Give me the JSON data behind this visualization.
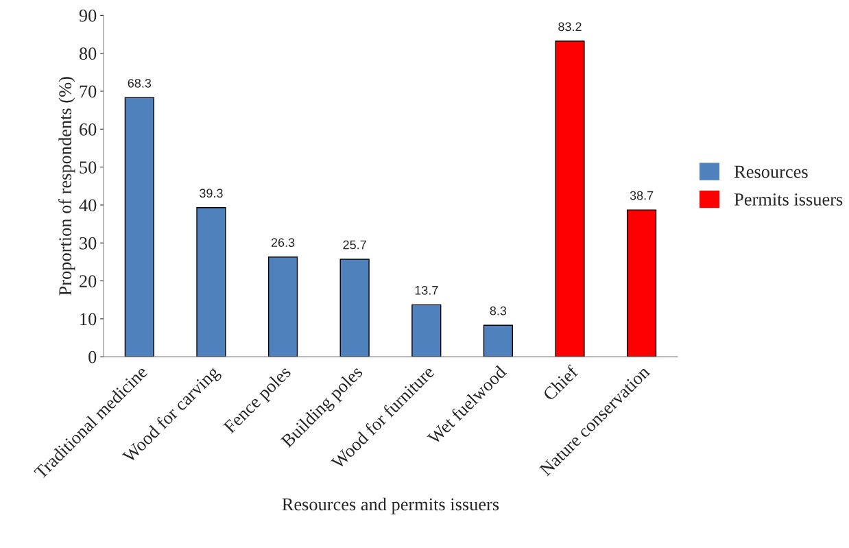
{
  "chart_data": {
    "type": "bar",
    "xlabel": "Resources and permits issuers",
    "ylabel": "Proportion of respondents (%)",
    "categories": [
      "Traditional medicine",
      "Wood for carving",
      "Fence poles",
      "Building poles",
      "Wood for furniture",
      "Wet fuelwood",
      "Chief",
      "Nature conservation"
    ],
    "series": [
      {
        "name": "Resources",
        "color": "#4f81bd",
        "values": [
          68.3,
          39.3,
          26.3,
          25.7,
          13.7,
          8.3,
          null,
          null
        ]
      },
      {
        "name": "Permits issuers",
        "color": "#ff0000",
        "values": [
          null,
          null,
          null,
          null,
          null,
          null,
          83.2,
          38.7
        ]
      }
    ],
    "ylim": [
      0,
      90
    ],
    "yticks": [
      0,
      10,
      20,
      30,
      40,
      50,
      60,
      70,
      80,
      90
    ],
    "data_labels": true,
    "legend": "right",
    "grid": false
  }
}
